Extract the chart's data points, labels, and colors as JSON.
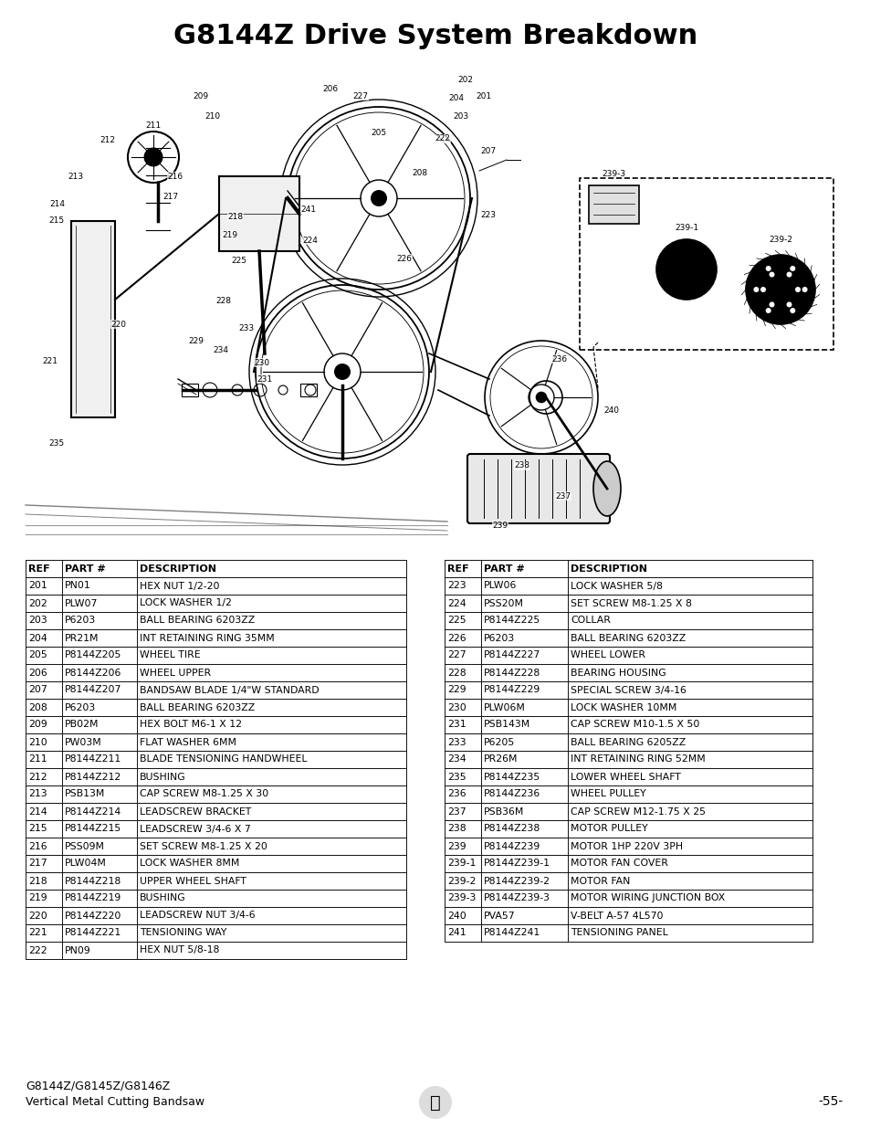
{
  "title": "G8144Z Drive System Breakdown",
  "title_fontsize": 22,
  "title_fontweight": "bold",
  "background_color": "#ffffff",
  "footer_left": "G8144Z/G8145Z/G8146Z\nVertical Metal Cutting Bandsaw",
  "footer_right": "-55-",
  "table_left": [
    [
      "REF",
      "PART #",
      "DESCRIPTION"
    ],
    [
      "201",
      "PN01",
      "HEX NUT 1/2-20"
    ],
    [
      "202",
      "PLW07",
      "LOCK WASHER 1/2"
    ],
    [
      "203",
      "P6203",
      "BALL BEARING 6203ZZ"
    ],
    [
      "204",
      "PR21M",
      "INT RETAINING RING 35MM"
    ],
    [
      "205",
      "P8144Z205",
      "WHEEL TIRE"
    ],
    [
      "206",
      "P8144Z206",
      "WHEEL UPPER"
    ],
    [
      "207",
      "P8144Z207",
      "BANDSAW BLADE 1/4\"W STANDARD"
    ],
    [
      "208",
      "P6203",
      "BALL BEARING 6203ZZ"
    ],
    [
      "209",
      "PB02M",
      "HEX BOLT M6-1 X 12"
    ],
    [
      "210",
      "PW03M",
      "FLAT WASHER 6MM"
    ],
    [
      "211",
      "P8144Z211",
      "BLADE TENSIONING HANDWHEEL"
    ],
    [
      "212",
      "P8144Z212",
      "BUSHING"
    ],
    [
      "213",
      "PSB13M",
      "CAP SCREW M8-1.25 X 30"
    ],
    [
      "214",
      "P8144Z214",
      "LEADSCREW BRACKET"
    ],
    [
      "215",
      "P8144Z215",
      "LEADSCREW 3/4-6 X 7"
    ],
    [
      "216",
      "PSS09M",
      "SET SCREW M8-1.25 X 20"
    ],
    [
      "217",
      "PLW04M",
      "LOCK WASHER 8MM"
    ],
    [
      "218",
      "P8144Z218",
      "UPPER WHEEL SHAFT"
    ],
    [
      "219",
      "P8144Z219",
      "BUSHING"
    ],
    [
      "220",
      "P8144Z220",
      "LEADSCREW NUT 3/4-6"
    ],
    [
      "221",
      "P8144Z221",
      "TENSIONING WAY"
    ],
    [
      "222",
      "PN09",
      "HEX NUT 5/8-18"
    ]
  ],
  "table_right": [
    [
      "REF",
      "PART #",
      "DESCRIPTION"
    ],
    [
      "223",
      "PLW06",
      "LOCK WASHER 5/8"
    ],
    [
      "224",
      "PSS20M",
      "SET SCREW M8-1.25 X 8"
    ],
    [
      "225",
      "P8144Z225",
      "COLLAR"
    ],
    [
      "226",
      "P6203",
      "BALL BEARING 6203ZZ"
    ],
    [
      "227",
      "P8144Z227",
      "WHEEL LOWER"
    ],
    [
      "228",
      "P8144Z228",
      "BEARING HOUSING"
    ],
    [
      "229",
      "P8144Z229",
      "SPECIAL SCREW 3/4-16"
    ],
    [
      "230",
      "PLW06M",
      "LOCK WASHER 10MM"
    ],
    [
      "231",
      "PSB143M",
      "CAP SCREW M10-1.5 X 50"
    ],
    [
      "233",
      "P6205",
      "BALL BEARING 6205ZZ"
    ],
    [
      "234",
      "PR26M",
      "INT RETAINING RING 52MM"
    ],
    [
      "235",
      "P8144Z235",
      "LOWER WHEEL SHAFT"
    ],
    [
      "236",
      "P8144Z236",
      "WHEEL PULLEY"
    ],
    [
      "237",
      "PSB36M",
      "CAP SCREW M12-1.75 X 25"
    ],
    [
      "238",
      "P8144Z238",
      "MOTOR PULLEY"
    ],
    [
      "239",
      "P8144Z239",
      "MOTOR 1HP 220V 3PH"
    ],
    [
      "239-1",
      "P8144Z239-1",
      "MOTOR FAN COVER"
    ],
    [
      "239-2",
      "P8144Z239-2",
      "MOTOR FAN"
    ],
    [
      "239-3",
      "P8144Z239-3",
      "MOTOR WIRING JUNCTION BOX"
    ],
    [
      "240",
      "PVA57",
      "V-BELT A-57 4L570"
    ],
    [
      "241",
      "P8144Z241",
      "TENSIONING PANEL"
    ]
  ],
  "text_color": "#000000",
  "header_fontsize": 8,
  "table_fontsize": 7.8
}
